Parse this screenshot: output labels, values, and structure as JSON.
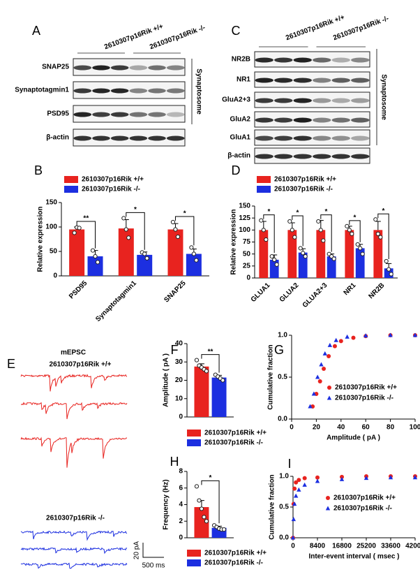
{
  "blots": [
    {
      "panel": "A",
      "groups": [
        "2610307p16Rik +/+",
        "2610307p16Rik -/-"
      ],
      "rows": [
        "SNAP25",
        "Synaptotagmin1",
        "PSD95",
        "β-actin"
      ],
      "fraction": "Synaptosome"
    },
    {
      "panel": "C",
      "groups": [
        "2610307p16Rik +/+",
        "2610307p16Rik -/-"
      ],
      "rows": [
        "NR2B",
        "NR1",
        "GluA2+3",
        "GluA2",
        "GluA1",
        "β-actin"
      ],
      "fraction": "Synaptosome"
    }
  ],
  "traces": {
    "panel": "E",
    "title": "mEPSC",
    "groups": [
      "2610307p16Rik +/+",
      "2610307p16Rik -/-"
    ],
    "scale_y": "20 pA",
    "scale_x": "500 ms"
  },
  "chart_data": [
    {
      "type": "bar",
      "panel": "B",
      "ylabel": "Relative expression",
      "categories": [
        "PSD95",
        "Synaptotagmin1",
        "SNAP25"
      ],
      "series": [
        {
          "name": "2610307p16Rik +/+",
          "color": "#e8231f",
          "values": [
            95,
            97,
            95
          ],
          "errors": [
            5,
            18,
            12
          ],
          "points": [
            [
              88,
              99,
              98
            ],
            [
              118,
              95,
              78
            ],
            [
              110,
              95,
              80
            ]
          ]
        },
        {
          "name": "2610307p16Rik -/-",
          "color": "#1c2fe0",
          "values": [
            40,
            43,
            45
          ],
          "errors": [
            12,
            6,
            10
          ],
          "points": [
            [
              52,
              40,
              28
            ],
            [
              48,
              45,
              36
            ],
            [
              58,
              45,
              32
            ]
          ]
        }
      ],
      "significance": [
        "**",
        "*",
        "*"
      ],
      "ylim": [
        0,
        150
      ],
      "yticks": [
        0,
        50,
        100,
        150
      ]
    },
    {
      "type": "bar",
      "panel": "D",
      "ylabel": "Relative expression",
      "categories": [
        "GLUA1",
        "GLUA2",
        "GLUA2+3",
        "NR1",
        "NR2B"
      ],
      "series": [
        {
          "name": "2610307p16Rik +/+",
          "color": "#e8231f",
          "values": [
            100,
            100,
            100,
            100,
            100
          ],
          "errors": [
            18,
            15,
            20,
            8,
            18
          ],
          "points": [
            [
              120,
              100,
              80
            ],
            [
              118,
              100,
              85
            ],
            [
              118,
              100,
              78
            ],
            [
              108,
              100,
              92
            ],
            [
              122,
              92,
              85
            ]
          ]
        },
        {
          "name": "2610307p16Rik -/-",
          "color": "#1c2fe0",
          "values": [
            38,
            53,
            45,
            62,
            20
          ],
          "errors": [
            10,
            8,
            5,
            8,
            10
          ],
          "points": [
            [
              45,
              38,
              28
            ],
            [
              62,
              52,
              45
            ],
            [
              50,
              45,
              40
            ],
            [
              70,
              62,
              50
            ],
            [
              35,
              18,
              8
            ]
          ]
        }
      ],
      "significance": [
        "*",
        "*",
        "*",
        "*",
        "*"
      ],
      "ylim": [
        0,
        150
      ],
      "yticks": [
        0,
        25,
        50,
        75,
        100,
        125,
        150
      ]
    },
    {
      "type": "bar",
      "panel": "F",
      "ylabel": "Amplitude ( pA )",
      "series": [
        {
          "name": "2610307p16Rik +/+",
          "color": "#e8231f",
          "values": [
            27.5
          ],
          "errors": [
            1.5
          ],
          "points": [
            [
              31,
              28,
              27,
              26,
              25
            ]
          ]
        },
        {
          "name": "2610307p16Rik -/-",
          "color": "#1c2fe0",
          "values": [
            21.5
          ],
          "errors": [
            1.2
          ],
          "points": [
            [
              23,
              22,
              21,
              20
            ]
          ]
        }
      ],
      "significance": [
        "**"
      ],
      "ylim": [
        0,
        40
      ],
      "yticks": [
        0,
        10,
        20,
        30,
        40
      ]
    },
    {
      "type": "scatter",
      "panel": "G",
      "xlabel": "Amplitude ( pA )",
      "ylabel": "Cumulative fraction",
      "series": [
        {
          "name": "2610307p16Rik +/+",
          "color": "#e8231f",
          "marker": "circle",
          "x": [
            17,
            20,
            23,
            26,
            30,
            35,
            40,
            50,
            60,
            80,
            100
          ],
          "values": [
            0.15,
            0.3,
            0.45,
            0.6,
            0.75,
            0.87,
            0.93,
            0.97,
            0.99,
            1,
            1
          ]
        },
        {
          "name": "2610307p16Rik -/-",
          "color": "#1c2fe0",
          "marker": "triangle",
          "x": [
            15,
            18,
            21,
            24,
            27,
            31,
            36,
            45,
            60,
            80,
            100
          ],
          "values": [
            0.15,
            0.3,
            0.5,
            0.65,
            0.78,
            0.88,
            0.94,
            0.98,
            0.995,
            1,
            1
          ]
        }
      ],
      "xlim": [
        0,
        100
      ],
      "xticks": [
        0,
        20,
        40,
        60,
        80,
        100
      ],
      "ylim": [
        0,
        1
      ],
      "yticks": [
        {
          "value": 0,
          "label": "0.0"
        },
        {
          "value": 0.5,
          "label": "0.5"
        },
        {
          "value": 1,
          "label": "1.0"
        }
      ]
    },
    {
      "type": "bar",
      "panel": "H",
      "ylabel": "Frequency (Hz)",
      "series": [
        {
          "name": "2610307p16Rik +/+",
          "color": "#e8231f",
          "values": [
            3.7
          ],
          "errors": [
            0.8
          ],
          "points": [
            [
              6.2,
              4.5,
              3.5,
              2.5,
              2
            ]
          ]
        },
        {
          "name": "2610307p16Rik -/-",
          "color": "#1c2fe0",
          "values": [
            1.2
          ],
          "errors": [
            0.2
          ],
          "points": [
            [
              1.5,
              1.3,
              1.1,
              1,
              1
            ]
          ]
        }
      ],
      "significance": [
        "*"
      ],
      "ylim": [
        0,
        8
      ],
      "yticks": [
        0,
        2,
        4,
        6,
        8
      ]
    },
    {
      "type": "scatter",
      "panel": "I",
      "xlabel": "Inter-event interval ( msec )",
      "ylabel": "Cumulative fraction",
      "series": [
        {
          "name": "2610307p16Rik +/+",
          "color": "#e8231f",
          "marker": "circle",
          "x": [
            0,
            200,
            500,
            1000,
            2000,
            4000,
            8400,
            16800,
            25200,
            33600,
            42000
          ],
          "values": [
            0,
            0.55,
            0.8,
            0.9,
            0.94,
            0.97,
            0.98,
            0.99,
            1,
            1,
            1
          ]
        },
        {
          "name": "2610307p16Rik -/-",
          "color": "#1c2fe0",
          "marker": "triangle",
          "x": [
            0,
            200,
            500,
            1000,
            2000,
            4000,
            8400,
            16800,
            25200,
            33600,
            42000
          ],
          "values": [
            0,
            0.3,
            0.55,
            0.68,
            0.78,
            0.86,
            0.92,
            0.95,
            0.97,
            0.98,
            0.98
          ]
        }
      ],
      "xlim": [
        0,
        42000
      ],
      "xticks": [
        0,
        8400,
        16800,
        25200,
        33600,
        42000
      ],
      "ylim": [
        0,
        1
      ],
      "yticks": [
        {
          "value": 0,
          "label": "0.0"
        },
        {
          "value": 0.5,
          "label": "0.5"
        },
        {
          "value": 1,
          "label": "1.0"
        }
      ]
    }
  ]
}
